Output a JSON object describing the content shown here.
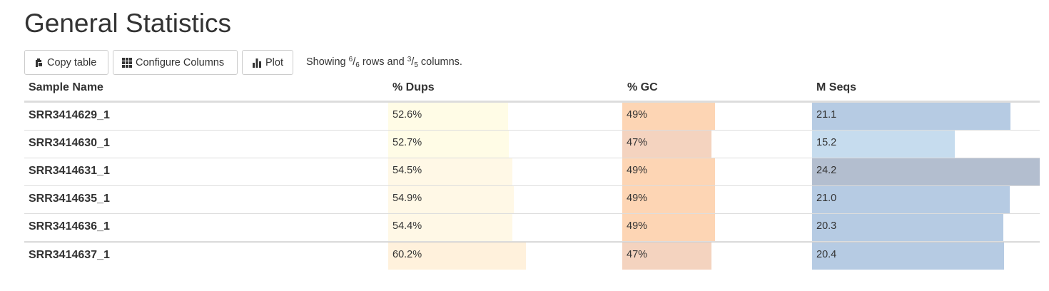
{
  "page": {
    "title": "General Statistics"
  },
  "toolbar": {
    "copy_label": "Copy table",
    "configure_label": "Configure Columns",
    "plot_label": "Plot",
    "status_prefix": "Showing ",
    "rows_shown": "6",
    "rows_total": "6",
    "status_mid": " rows and ",
    "cols_shown": "3",
    "cols_total": "5",
    "status_suffix": " columns."
  },
  "table": {
    "headers": {
      "sample": "Sample Name",
      "dups": "% Dups",
      "gc": "% GC",
      "mseqs": "M Seqs"
    },
    "rows": [
      {
        "sample": "SRR3414629_1",
        "dups": "52.6%",
        "dups_value": 52.6,
        "gc": "49%",
        "gc_value": 49,
        "mseqs": "21.1",
        "mseqs_value": 21.1
      },
      {
        "sample": "SRR3414630_1",
        "dups": "52.7%",
        "dups_value": 52.7,
        "gc": "47%",
        "gc_value": 47,
        "mseqs": "15.2",
        "mseqs_value": 15.2
      },
      {
        "sample": "SRR3414631_1",
        "dups": "54.5%",
        "dups_value": 54.5,
        "gc": "49%",
        "gc_value": 49,
        "mseqs": "24.2",
        "mseqs_value": 24.2
      },
      {
        "sample": "SRR3414635_1",
        "dups": "54.9%",
        "dups_value": 54.9,
        "gc": "49%",
        "gc_value": 49,
        "mseqs": "21.0",
        "mseqs_value": 21.0
      },
      {
        "sample": "SRR3414636_1",
        "dups": "54.4%",
        "dups_value": 54.4,
        "gc": "49%",
        "gc_value": 49,
        "mseqs": "20.3",
        "mseqs_value": 20.3
      },
      {
        "sample": "SRR3414637_1",
        "dups": "60.2%",
        "dups_value": 60.2,
        "gc": "47%",
        "gc_value": 47,
        "mseqs": "20.4",
        "mseqs_value": 20.4
      }
    ],
    "bar_colors": {
      "dups": [
        "#fffce6",
        "#fffce6",
        "#fff8e6",
        "#fff8e6",
        "#fff8e6",
        "#fff1dc"
      ],
      "gc": [
        "#fdd5b4",
        "#f4d3bf",
        "#fdd5b4",
        "#fdd5b4",
        "#fdd5b4",
        "#f4d3bf"
      ],
      "mseqs": [
        "#b6cbe3",
        "#c6dcee",
        "#b3becf",
        "#b6cbe3",
        "#b6cbe3",
        "#b6cbe3"
      ]
    },
    "scales": {
      "dups_max": 100,
      "gc_max": 100,
      "mseqs_max": 24.2
    }
  }
}
